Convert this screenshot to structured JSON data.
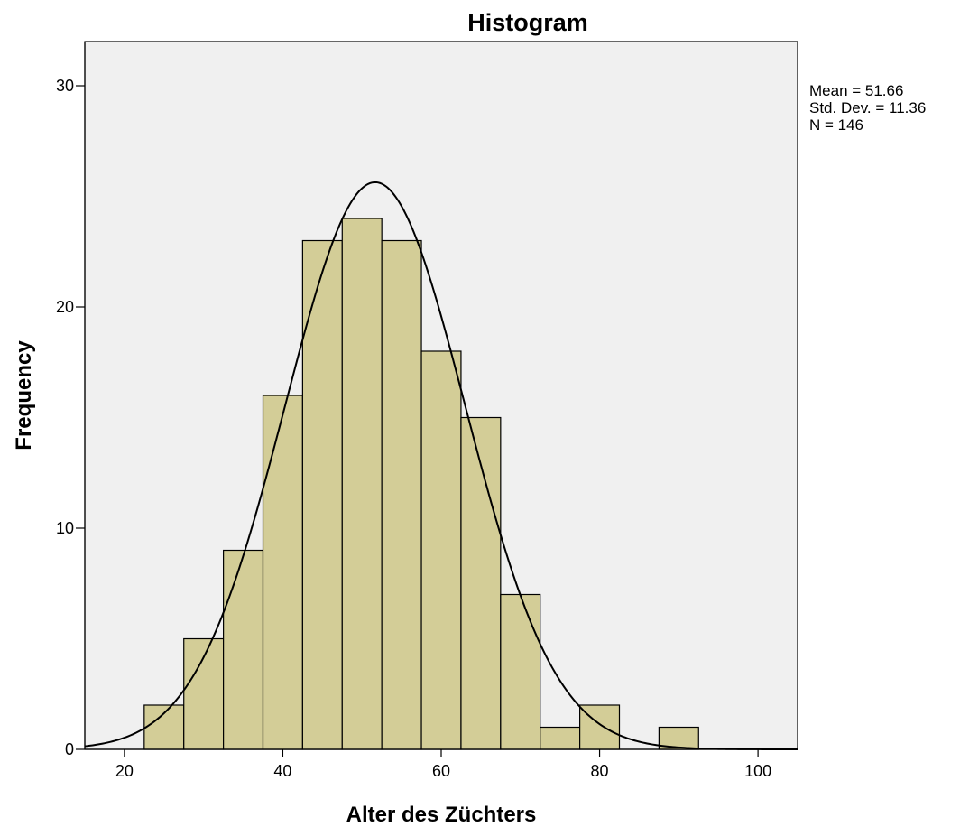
{
  "chart_data": {
    "type": "bar",
    "title": "Histogram",
    "xlabel": "Alter des Züchters",
    "ylabel": "Frequency",
    "xlim": [
      15,
      105
    ],
    "ylim": [
      0,
      32
    ],
    "x_ticks": [
      20,
      40,
      60,
      80,
      100
    ],
    "y_ticks": [
      0,
      10,
      20,
      30
    ],
    "bin_width": 5,
    "bins": [
      {
        "start": 22.5,
        "end": 27.5,
        "count": 2
      },
      {
        "start": 27.5,
        "end": 32.5,
        "count": 5
      },
      {
        "start": 32.5,
        "end": 37.5,
        "count": 9
      },
      {
        "start": 37.5,
        "end": 42.5,
        "count": 16
      },
      {
        "start": 42.5,
        "end": 47.5,
        "count": 23
      },
      {
        "start": 47.5,
        "end": 52.5,
        "count": 24
      },
      {
        "start": 52.5,
        "end": 57.5,
        "count": 23
      },
      {
        "start": 57.5,
        "end": 62.5,
        "count": 18
      },
      {
        "start": 62.5,
        "end": 67.5,
        "count": 15
      },
      {
        "start": 67.5,
        "end": 72.5,
        "count": 7
      },
      {
        "start": 72.5,
        "end": 77.5,
        "count": 1
      },
      {
        "start": 77.5,
        "end": 82.5,
        "count": 2
      },
      {
        "start": 82.5,
        "end": 87.5,
        "count": 0
      },
      {
        "start": 87.5,
        "end": 92.5,
        "count": 1
      }
    ],
    "normal_curve": {
      "mean": 51.66,
      "std_dev": 11.36,
      "n": 146
    },
    "stats_text": [
      "Mean = 51.66",
      "Std. Dev. = 11.36",
      "N = 146"
    ],
    "colors": {
      "bar_fill": "#d3cd97",
      "bar_stroke": "#000000",
      "plot_background": "#f0f0f0",
      "curve": "#000000"
    },
    "grid": false
  }
}
